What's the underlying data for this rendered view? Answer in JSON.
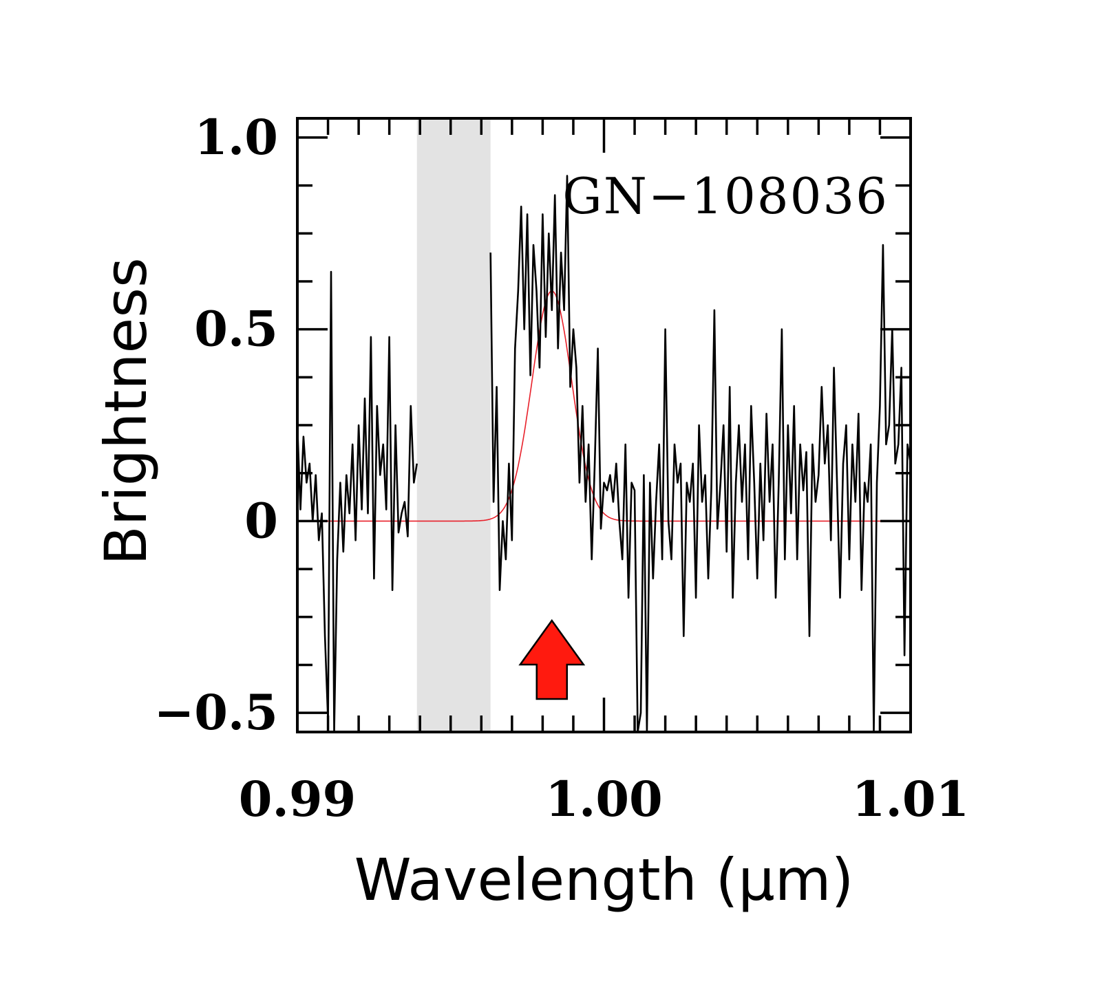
{
  "chart_data": {
    "type": "line",
    "title": "",
    "annotation": "GN−108036",
    "xlabel": "Wavelength (μm)",
    "ylabel": "Brightness",
    "xlim": [
      0.99,
      1.01
    ],
    "ylim": [
      -0.55,
      1.05
    ],
    "xticks": [
      0.99,
      1.0,
      1.01
    ],
    "xtick_labels": [
      "0.99",
      "1.00",
      "1.01"
    ],
    "yticks": [
      -0.5,
      0,
      0.5,
      1.0
    ],
    "ytick_labels": [
      "−0.5",
      "0",
      "0.5",
      "1.0"
    ],
    "masked_region": [
      0.9939,
      0.9963
    ],
    "arrow_at": 0.9983,
    "colors": {
      "spectrum": "#000000",
      "fit": "#e8202a",
      "mask": "#e3e3e3",
      "arrow_fill": "#ff1a0f",
      "arrow_stroke": "#000000"
    },
    "series": [
      {
        "kind": "spectrum",
        "segments": [
          {
            "x": [
              0.99,
              0.9901,
              0.9902,
              0.9903,
              0.9904,
              0.9905,
              0.9906,
              0.9907,
              0.9908,
              0.9909,
              0.991,
              0.9911,
              0.9912,
              0.9913,
              0.9914,
              0.9915,
              0.9916,
              0.9917,
              0.9918,
              0.9919,
              0.992,
              0.9921,
              0.9922,
              0.9923,
              0.9924,
              0.9925,
              0.9926,
              0.9927,
              0.9928,
              0.9929,
              0.993,
              0.9931,
              0.9932,
              0.9933,
              0.9934,
              0.9935,
              0.9936,
              0.9937,
              0.9938,
              0.9939
            ],
            "y": [
              0.25,
              0.03,
              0.22,
              0.1,
              0.15,
              0.0,
              0.12,
              -0.05,
              0.02,
              -0.3,
              -0.52,
              0.65,
              -0.55,
              -0.1,
              0.1,
              -0.08,
              0.12,
              0.02,
              0.2,
              -0.05,
              0.25,
              0.03,
              0.32,
              0.02,
              0.48,
              -0.15,
              0.3,
              0.12,
              0.2,
              0.03,
              0.48,
              -0.18,
              0.25,
              -0.03,
              0.02,
              0.05,
              -0.04,
              0.3,
              0.1,
              0.15
            ]
          },
          {
            "x": [
              0.9963,
              0.9964,
              0.9965,
              0.9966,
              0.9967,
              0.9968,
              0.9969,
              0.997,
              0.9971,
              0.9972,
              0.9973,
              0.9974,
              0.9975,
              0.9976,
              0.9977,
              0.9978,
              0.9979,
              0.998,
              0.9981,
              0.9982,
              0.9983,
              0.9984,
              0.9985,
              0.9986,
              0.9987,
              0.9988,
              0.9989,
              0.999,
              0.9991,
              0.9992,
              0.9993,
              0.9994,
              0.9995,
              0.9996,
              0.9997,
              0.9998,
              0.9999,
              1.0,
              1.0001,
              1.0002,
              1.0003,
              1.0004,
              1.0005,
              1.0006,
              1.0007,
              1.0008,
              1.0009,
              1.001,
              1.0011,
              1.0012,
              1.0013,
              1.0014,
              1.0015,
              1.0016,
              1.0017,
              1.0018,
              1.0019,
              1.002,
              1.0021,
              1.0022,
              1.0023,
              1.0024,
              1.0025,
              1.0026,
              1.0027,
              1.0028,
              1.0029,
              1.003,
              1.0031,
              1.0032,
              1.0033,
              1.0034,
              1.0035,
              1.0036,
              1.0037,
              1.0038,
              1.0039,
              1.004,
              1.0041,
              1.0042,
              1.0043,
              1.0044,
              1.0045,
              1.0046,
              1.0047,
              1.0048,
              1.0049,
              1.005,
              1.0051,
              1.0052,
              1.0053,
              1.0054,
              1.0055,
              1.0056,
              1.0057,
              1.0058,
              1.0059,
              1.006,
              1.0061,
              1.0062,
              1.0063,
              1.0064,
              1.0065,
              1.0066,
              1.0067,
              1.0068,
              1.0069,
              1.007,
              1.0071,
              1.0072,
              1.0073,
              1.0074,
              1.0075,
              1.0076,
              1.0077,
              1.0078,
              1.0079,
              1.008,
              1.0081,
              1.0082,
              1.0083,
              1.0084,
              1.0085,
              1.0086,
              1.0087,
              1.0088,
              1.0089,
              1.009,
              1.0091,
              1.0092,
              1.0093,
              1.0094,
              1.0095,
              1.0096,
              1.0097,
              1.0098,
              1.0099,
              1.01
            ],
            "y": [
              0.7,
              0.05,
              0.35,
              -0.18,
              0.0,
              -0.1,
              0.15,
              -0.05,
              0.45,
              0.6,
              0.82,
              0.5,
              0.8,
              0.38,
              0.72,
              0.6,
              0.4,
              0.8,
              0.48,
              0.75,
              0.55,
              0.85,
              0.45,
              0.7,
              0.55,
              0.9,
              0.35,
              0.5,
              0.4,
              0.1,
              0.3,
              0.05,
              0.2,
              -0.1,
              0.15,
              0.45,
              -0.02,
              0.1,
              0.08,
              0.12,
              0.05,
              0.15,
              0.0,
              -0.1,
              0.2,
              -0.2,
              0.1,
              0.08,
              -0.55,
              -0.5,
              0.12,
              -0.55,
              0.1,
              -0.15,
              0.05,
              0.2,
              -0.1,
              0.5,
              0.0,
              -0.1,
              0.2,
              0.1,
              0.15,
              -0.3,
              0.1,
              0.05,
              0.15,
              -0.2,
              0.25,
              0.05,
              0.12,
              -0.15,
              0.08,
              0.55,
              -0.02,
              0.1,
              0.25,
              -0.08,
              0.35,
              -0.2,
              0.1,
              0.25,
              0.05,
              0.2,
              -0.1,
              0.3,
              0.1,
              -0.15,
              0.15,
              -0.05,
              0.28,
              0.05,
              0.2,
              -0.2,
              0.1,
              0.5,
              -0.1,
              0.25,
              0.02,
              0.3,
              -0.1,
              0.2,
              0.08,
              0.18,
              -0.3,
              0.2,
              0.05,
              0.12,
              0.35,
              0.15,
              0.25,
              -0.05,
              0.4,
              0.1,
              -0.2,
              0.15,
              0.25,
              -0.1,
              0.2,
              0.05,
              0.28,
              -0.18,
              0.1,
              0.05,
              0.2,
              -0.55,
              0.1,
              0.3,
              0.72,
              0.2,
              0.25,
              0.5,
              0.15,
              0.2,
              0.4,
              -0.35,
              0.2,
              0.15
            ]
          }
        ]
      },
      {
        "kind": "gaussian-fit",
        "amplitude": 0.6,
        "center": 0.9983,
        "sigma": 0.00065
      }
    ]
  }
}
